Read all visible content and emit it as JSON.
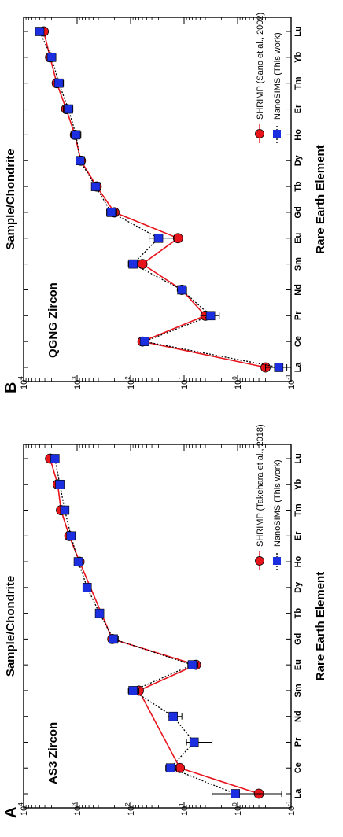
{
  "chart_data": [
    {
      "type": "line",
      "panel": "A",
      "title": "AS3 Zircon",
      "xlabel": "Rare Earth Element",
      "ylabel": "Sample/Chondrite",
      "yscale": "log",
      "ylim": [
        0.1,
        10000
      ],
      "yticks": [
        "10^4",
        "10^3",
        "10^2",
        "10^1",
        "10^0",
        "10^-1"
      ],
      "legend_position": "bottom-right",
      "categories": [
        "La",
        "Ce",
        "Pr",
        "Nd",
        "Sm",
        "Eu",
        "Gd",
        "Tb",
        "Dy",
        "Ho",
        "Er",
        "Tm",
        "Yb",
        "Lu"
      ],
      "series": [
        {
          "name": "SHRIMP (Takehara et al., 2018)",
          "color": "#e8141c",
          "marker": "circle",
          "line": "solid",
          "points": [
            {
              "x": "La",
              "y": 0.4
            },
            {
              "x": "Ce",
              "y": 12
            },
            {
              "x": "Pr",
              "y": null
            },
            {
              "x": "Nd",
              "y": null
            },
            {
              "x": "Sm",
              "y": 70
            },
            {
              "x": "Eu",
              "y": 6
            },
            {
              "x": "Gd",
              "y": 220
            },
            {
              "x": "Tb",
              "y": null
            },
            {
              "x": "Dy",
              "y": null
            },
            {
              "x": "Ho",
              "y": 900
            },
            {
              "x": "Er",
              "y": 1400
            },
            {
              "x": "Tm",
              "y": 2000
            },
            {
              "x": "Yb",
              "y": 2300
            },
            {
              "x": "Lu",
              "y": 3200
            }
          ]
        },
        {
          "name": "NanoSIMS (This work)",
          "color": "#1c2fe0",
          "marker": "square",
          "line": "dotted",
          "points": [
            {
              "x": "La",
              "y": 1.1,
              "err": [
                0.15,
                3
              ]
            },
            {
              "x": "Ce",
              "y": 18,
              "err": [
                14,
                22
              ]
            },
            {
              "x": "Pr",
              "y": 6.5,
              "err": [
                3,
                9
              ]
            },
            {
              "x": "Nd",
              "y": 16,
              "err": [
                11,
                20
              ]
            },
            {
              "x": "Sm",
              "y": 90,
              "err": [
                70,
                110
              ]
            },
            {
              "x": "Eu",
              "y": 7,
              "err": [
                5.5,
                8.5
              ]
            },
            {
              "x": "Gd",
              "y": 210,
              "err": [
                170,
                250
              ]
            },
            {
              "x": "Tb",
              "y": 380,
              "err": [
                330,
                440
              ]
            },
            {
              "x": "Dy",
              "y": 650,
              "err": [
                560,
                750
              ]
            },
            {
              "x": "Ho",
              "y": 950,
              "err": [
                800,
                1100
              ]
            },
            {
              "x": "Er",
              "y": 1300,
              "err": [
                1100,
                1500
              ]
            },
            {
              "x": "Tm",
              "y": 1700,
              "err": [
                1450,
                2000
              ]
            },
            {
              "x": "Yb",
              "y": 2100,
              "err": [
                1800,
                2500
              ]
            },
            {
              "x": "Lu",
              "y": 2600,
              "err": [
                2200,
                3000
              ]
            }
          ]
        }
      ]
    },
    {
      "type": "line",
      "panel": "B",
      "title": "QGNG Zircon",
      "xlabel": "Rare Earth Element",
      "ylabel": "Sample/Chondrite",
      "yscale": "log",
      "ylim": [
        0.1,
        10000
      ],
      "yticks": [
        "10^4",
        "10^3",
        "10^2",
        "10^1",
        "10^0",
        "10^-1"
      ],
      "legend_position": "bottom-right",
      "categories": [
        "La",
        "Ce",
        "Pr",
        "Nd",
        "Sm",
        "Eu",
        "Gd",
        "Tb",
        "Dy",
        "Ho",
        "Er",
        "Tm",
        "Yb",
        "Lu"
      ],
      "series": [
        {
          "name": "SHRIMP (Sano et al., 2002)",
          "color": "#e8141c",
          "marker": "circle",
          "line": "solid",
          "points": [
            {
              "x": "La",
              "y": 0.3
            },
            {
              "x": "Ce",
              "y": 60
            },
            {
              "x": "Pr",
              "y": 4
            },
            {
              "x": "Nd",
              "y": 11
            },
            {
              "x": "Sm",
              "y": 60
            },
            {
              "x": "Eu",
              "y": 13
            },
            {
              "x": "Gd",
              "y": 200
            },
            {
              "x": "Tb",
              "y": 430
            },
            {
              "x": "Dy",
              "y": 850
            },
            {
              "x": "Ho",
              "y": 1100
            },
            {
              "x": "Er",
              "y": 1600
            },
            {
              "x": "Tm",
              "y": 2400
            },
            {
              "x": "Yb",
              "y": 3200
            },
            {
              "x": "Lu",
              "y": 4200
            }
          ]
        },
        {
          "name": "NanoSIMS (This work)",
          "color": "#1c2fe0",
          "marker": "square",
          "line": "dotted",
          "points": [
            {
              "x": "La",
              "y": 0.17,
              "err": [
                0.12,
                0.3
              ]
            },
            {
              "x": "Ce",
              "y": 55,
              "err": [
                45,
                65
              ]
            },
            {
              "x": "Pr",
              "y": 3.2,
              "err": [
                2.2,
                4.8
              ]
            },
            {
              "x": "Nd",
              "y": 11,
              "err": [
                9,
                13
              ]
            },
            {
              "x": "Sm",
              "y": 90,
              "err": [
                75,
                110
              ]
            },
            {
              "x": "Eu",
              "y": 30,
              "err": [
                15,
                45
              ]
            },
            {
              "x": "Gd",
              "y": 230,
              "err": [
                180,
                280
              ]
            },
            {
              "x": "Tb",
              "y": 450,
              "err": [
                380,
                530
              ]
            },
            {
              "x": "Dy",
              "y": 880,
              "err": [
                750,
                1050
              ]
            },
            {
              "x": "Ho",
              "y": 1050,
              "err": [
                850,
                1300
              ]
            },
            {
              "x": "Er",
              "y": 1450,
              "err": [
                1200,
                1800
              ]
            },
            {
              "x": "Tm",
              "y": 2200,
              "err": [
                1800,
                2600
              ]
            },
            {
              "x": "Yb",
              "y": 3000,
              "err": [
                2500,
                3600
              ]
            },
            {
              "x": "Lu",
              "y": 5000,
              "err": [
                4200,
                5800
              ]
            }
          ]
        }
      ]
    }
  ]
}
